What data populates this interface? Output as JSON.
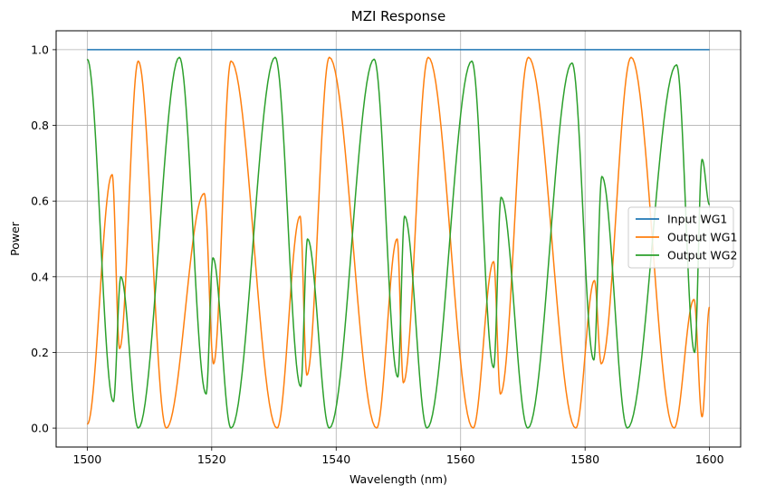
{
  "chart_data": {
    "type": "line",
    "title": "MZI Response",
    "xlabel": "Wavelength (nm)",
    "ylabel": "Power",
    "xlim": [
      1495,
      1605
    ],
    "ylim": [
      -0.05,
      1.05
    ],
    "xticks": [
      1500,
      1520,
      1540,
      1560,
      1580,
      1600
    ],
    "yticks": [
      0.0,
      0.2,
      0.4,
      0.6,
      0.8,
      1.0
    ],
    "xtick_labels": [
      "1500",
      "1520",
      "1540",
      "1560",
      "1580",
      "1600"
    ],
    "ytick_labels": [
      "0.0",
      "0.2",
      "0.4",
      "0.6",
      "0.8",
      "1.0"
    ],
    "grid": true,
    "legend_position": "center-right",
    "series": [
      {
        "name": "Input WG1",
        "color": "#1f77b4",
        "x": [
          1500,
          1600
        ],
        "y": [
          1.0,
          1.0
        ]
      },
      {
        "name": "Output WG1",
        "color": "#ff7f0e",
        "x": [
          1500,
          1504,
          1505.2,
          1508.2,
          1512.7,
          1518.8,
          1520.3,
          1523.1,
          1530.5,
          1534.2,
          1535.3,
          1538.9,
          1546.5,
          1549.8,
          1550.8,
          1554.8,
          1562,
          1565.3,
          1566.4,
          1570.9,
          1578.5,
          1581.5,
          1582.6,
          1587.4,
          1594.3,
          1597.5,
          1598.8,
          1600
        ],
        "y": [
          0.01,
          0.67,
          0.21,
          0.97,
          0.0,
          0.62,
          0.17,
          0.97,
          0.0,
          0.56,
          0.14,
          0.98,
          0.0,
          0.5,
          0.12,
          0.98,
          0.0,
          0.44,
          0.09,
          0.98,
          0.0,
          0.39,
          0.17,
          0.98,
          0.0,
          0.34,
          0.03,
          0.32
        ]
      },
      {
        "name": "Output WG2",
        "color": "#2ca02c",
        "x": [
          1500,
          1504.2,
          1505.4,
          1508.2,
          1514.8,
          1519.1,
          1520.2,
          1523.1,
          1530.2,
          1534.3,
          1535.4,
          1538.9,
          1546.1,
          1549.9,
          1551.0,
          1554.6,
          1561.8,
          1565.3,
          1566.5,
          1570.8,
          1577.9,
          1581.4,
          1582.7,
          1586.8,
          1594.7,
          1597.6,
          1598.8,
          1600
        ],
        "y": [
          0.975,
          0.07,
          0.4,
          0.0,
          0.98,
          0.09,
          0.45,
          0.0,
          0.98,
          0.11,
          0.5,
          0.0,
          0.975,
          0.135,
          0.56,
          0.0,
          0.97,
          0.16,
          0.61,
          0.0,
          0.965,
          0.18,
          0.665,
          0.0,
          0.96,
          0.2,
          0.71,
          0.59
        ]
      }
    ]
  }
}
